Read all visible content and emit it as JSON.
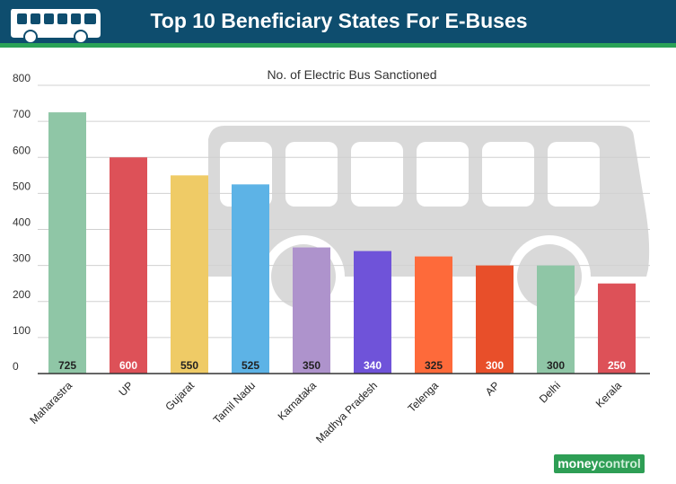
{
  "header": {
    "title": "Top 10 Beneficiary States For E-Buses",
    "icon": "bus-icon"
  },
  "chart_data": {
    "type": "bar",
    "title": "No. of Electric Bus Sanctioned",
    "xlabel": "",
    "ylabel": "",
    "ylim": [
      0,
      800
    ],
    "yticks": [
      0,
      100,
      200,
      300,
      400,
      500,
      600,
      700,
      800
    ],
    "categories": [
      "Maharastra",
      "UP",
      "Gujarat",
      "Tamil Nadu",
      "Karnataka",
      "Madhya Pradesh",
      "Telenga",
      "AP",
      "Delhi",
      "Kerala"
    ],
    "values": [
      725,
      600,
      550,
      525,
      350,
      340,
      325,
      300,
      300,
      250
    ],
    "colors": [
      "#8fc6a6",
      "#dd5158",
      "#efcb66",
      "#5db3e6",
      "#ae93cc",
      "#6f53d9",
      "#fe6a3a",
      "#e84f2a",
      "#8fc6a6",
      "#dd5158"
    ],
    "label_colors": [
      "#222222",
      "#ffffff",
      "#222222",
      "#222222",
      "#222222",
      "#ffffff",
      "#222222",
      "#ffffff",
      "#222222",
      "#ffffff"
    ],
    "grid": true,
    "legend": "none"
  },
  "branding": {
    "logo_part1": "money",
    "logo_part2": "control"
  }
}
